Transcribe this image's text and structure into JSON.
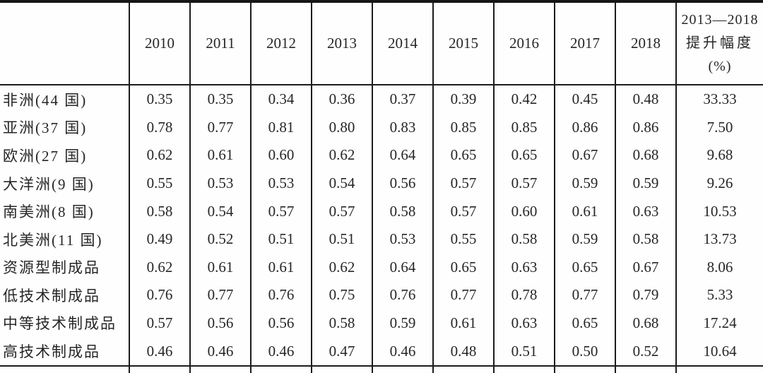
{
  "colors": {
    "border": "#1c1c1c",
    "text": "#262626",
    "background": "#ffffff"
  },
  "table": {
    "corner": "",
    "years": [
      "2010",
      "2011",
      "2012",
      "2013",
      "2014",
      "2015",
      "2016",
      "2017",
      "2018"
    ],
    "last_header": {
      "line1": "2013—2018",
      "line2": "提升幅度",
      "line3": "(%)"
    },
    "rows": [
      {
        "label": "非洲(44 国)",
        "values": [
          "0.35",
          "0.35",
          "0.34",
          "0.36",
          "0.37",
          "0.39",
          "0.42",
          "0.45",
          "0.48"
        ],
        "change": "33.33"
      },
      {
        "label": "亚洲(37 国)",
        "values": [
          "0.78",
          "0.77",
          "0.81",
          "0.80",
          "0.83",
          "0.85",
          "0.85",
          "0.86",
          "0.86"
        ],
        "change": "7.50"
      },
      {
        "label": "欧洲(27 国)",
        "values": [
          "0.62",
          "0.61",
          "0.60",
          "0.62",
          "0.64",
          "0.65",
          "0.65",
          "0.67",
          "0.68"
        ],
        "change": "9.68"
      },
      {
        "label": "大洋洲(9 国)",
        "values": [
          "0.55",
          "0.53",
          "0.53",
          "0.54",
          "0.56",
          "0.57",
          "0.57",
          "0.59",
          "0.59"
        ],
        "change": "9.26"
      },
      {
        "label": "南美洲(8 国)",
        "values": [
          "0.58",
          "0.54",
          "0.57",
          "0.57",
          "0.58",
          "0.57",
          "0.60",
          "0.61",
          "0.63"
        ],
        "change": "10.53"
      },
      {
        "label": "北美洲(11 国)",
        "values": [
          "0.49",
          "0.52",
          "0.51",
          "0.51",
          "0.53",
          "0.55",
          "0.58",
          "0.59",
          "0.58"
        ],
        "change": "13.73"
      },
      {
        "label": "资源型制成品",
        "values": [
          "0.62",
          "0.61",
          "0.61",
          "0.62",
          "0.64",
          "0.65",
          "0.63",
          "0.65",
          "0.67"
        ],
        "change": "8.06"
      },
      {
        "label": "低技术制成品",
        "values": [
          "0.76",
          "0.77",
          "0.76",
          "0.75",
          "0.76",
          "0.77",
          "0.78",
          "0.77",
          "0.79"
        ],
        "change": "5.33"
      },
      {
        "label": "中等技术制成品",
        "values": [
          "0.57",
          "0.56",
          "0.56",
          "0.58",
          "0.59",
          "0.61",
          "0.63",
          "0.65",
          "0.68"
        ],
        "change": "17.24"
      },
      {
        "label": "高技术制成品",
        "values": [
          "0.46",
          "0.46",
          "0.46",
          "0.47",
          "0.46",
          "0.48",
          "0.51",
          "0.50",
          "0.52"
        ],
        "change": "10.64"
      }
    ]
  },
  "chart_data": {
    "type": "table",
    "columns": [
      "",
      "2010",
      "2011",
      "2012",
      "2013",
      "2014",
      "2015",
      "2016",
      "2017",
      "2018",
      "2013—2018 提升幅度(%)"
    ],
    "rows": [
      [
        "非洲(44 国)",
        0.35,
        0.35,
        0.34,
        0.36,
        0.37,
        0.39,
        0.42,
        0.45,
        0.48,
        33.33
      ],
      [
        "亚洲(37 国)",
        0.78,
        0.77,
        0.81,
        0.8,
        0.83,
        0.85,
        0.85,
        0.86,
        0.86,
        7.5
      ],
      [
        "欧洲(27 国)",
        0.62,
        0.61,
        0.6,
        0.62,
        0.64,
        0.65,
        0.65,
        0.67,
        0.68,
        9.68
      ],
      [
        "大洋洲(9 国)",
        0.55,
        0.53,
        0.53,
        0.54,
        0.56,
        0.57,
        0.57,
        0.59,
        0.59,
        9.26
      ],
      [
        "南美洲(8 国)",
        0.58,
        0.54,
        0.57,
        0.57,
        0.58,
        0.57,
        0.6,
        0.61,
        0.63,
        10.53
      ],
      [
        "北美洲(11 国)",
        0.49,
        0.52,
        0.51,
        0.51,
        0.53,
        0.55,
        0.58,
        0.59,
        0.58,
        13.73
      ],
      [
        "资源型制成品",
        0.62,
        0.61,
        0.61,
        0.62,
        0.64,
        0.65,
        0.63,
        0.65,
        0.67,
        8.06
      ],
      [
        "低技术制成品",
        0.76,
        0.77,
        0.76,
        0.75,
        0.76,
        0.77,
        0.78,
        0.77,
        0.79,
        5.33
      ],
      [
        "中等技术制成品",
        0.57,
        0.56,
        0.56,
        0.58,
        0.59,
        0.61,
        0.63,
        0.65,
        0.68,
        17.24
      ],
      [
        "高技术制成品",
        0.46,
        0.46,
        0.46,
        0.47,
        0.46,
        0.48,
        0.51,
        0.5,
        0.52,
        10.64
      ]
    ]
  }
}
